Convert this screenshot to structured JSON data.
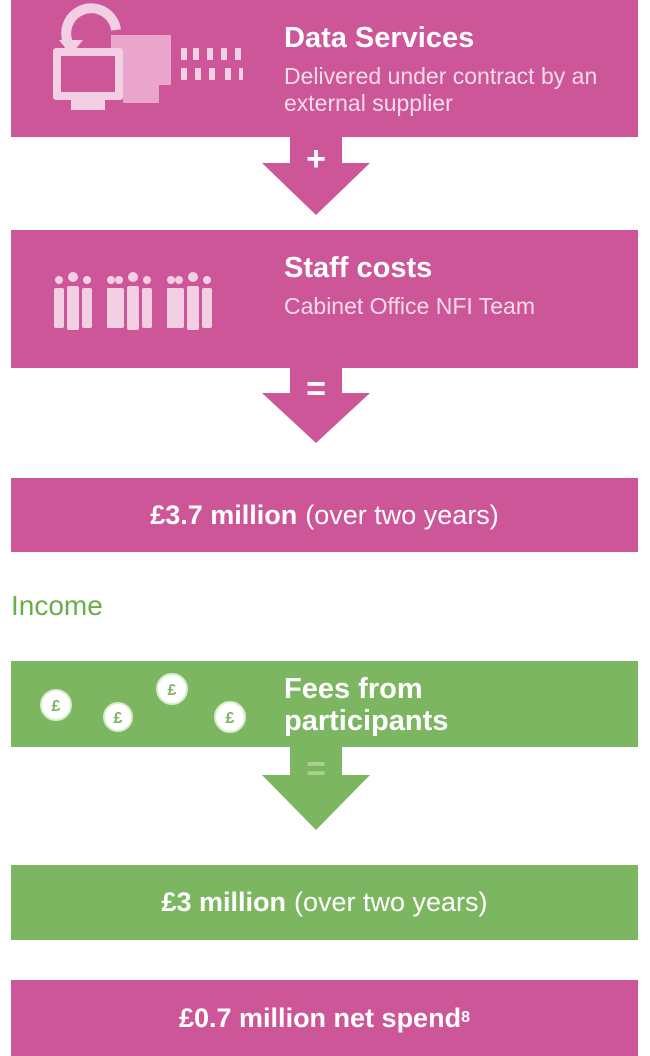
{
  "cost_blocks": [
    {
      "title": "Data Services",
      "subtitle": "Delivered under contract by an external supplier"
    },
    {
      "title": "Staff costs",
      "subtitle": "Cabinet Office NFI Team"
    }
  ],
  "operators": [
    "+",
    "=",
    "="
  ],
  "cost_total": {
    "amount": "£3.7 million",
    "note": "(over two years)"
  },
  "income_heading": "Income",
  "income_block": {
    "title": "Fees from participants"
  },
  "income_total": {
    "amount": "£3 million",
    "note": "(over two years)"
  },
  "net": {
    "text": "£0.7 million net spend",
    "footnote": "8"
  }
}
